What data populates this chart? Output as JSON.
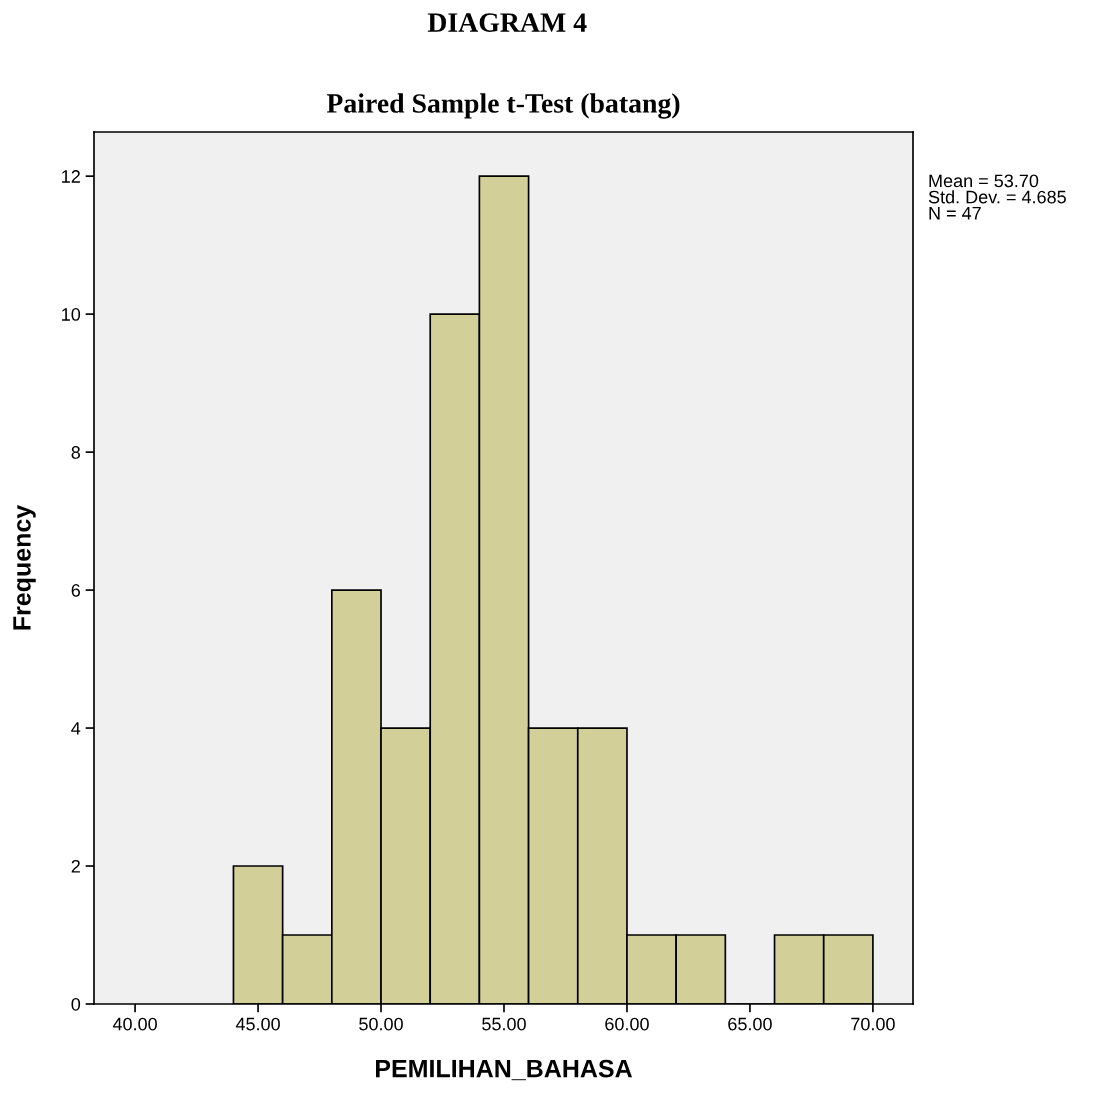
{
  "chart_data": {
    "type": "histogram",
    "title": "DIAGRAM 4",
    "subtitle": "Paired Sample t-Test (batang)",
    "xlabel": "PEMILIHAN_BAHASA",
    "ylabel": "Frequency",
    "bins": [
      44,
      46,
      48,
      50,
      52,
      54,
      56,
      58,
      60,
      62,
      64,
      66,
      68,
      70
    ],
    "values": [
      2,
      1,
      6,
      4,
      10,
      12,
      4,
      4,
      1,
      1,
      0,
      1,
      1
    ],
    "color": "#d3cf98",
    "xlim": [
      38.33,
      71.63
    ],
    "xticks": [
      {
        "value": 40,
        "label": "40.00"
      },
      {
        "value": 45,
        "label": "45.00"
      },
      {
        "value": 50,
        "label": "50.00"
      },
      {
        "value": 55,
        "label": "55.00"
      },
      {
        "value": 60,
        "label": "60.00"
      },
      {
        "value": 65,
        "label": "65.00"
      },
      {
        "value": 70,
        "label": "70.00"
      }
    ],
    "ylim": [
      0,
      12.64
    ],
    "yticks": [
      0,
      2,
      4,
      6,
      8,
      10,
      12
    ],
    "grid": false,
    "annotations": [
      "Mean = 53.70\nStd. Dev. = 4.685\nN = 47"
    ]
  }
}
